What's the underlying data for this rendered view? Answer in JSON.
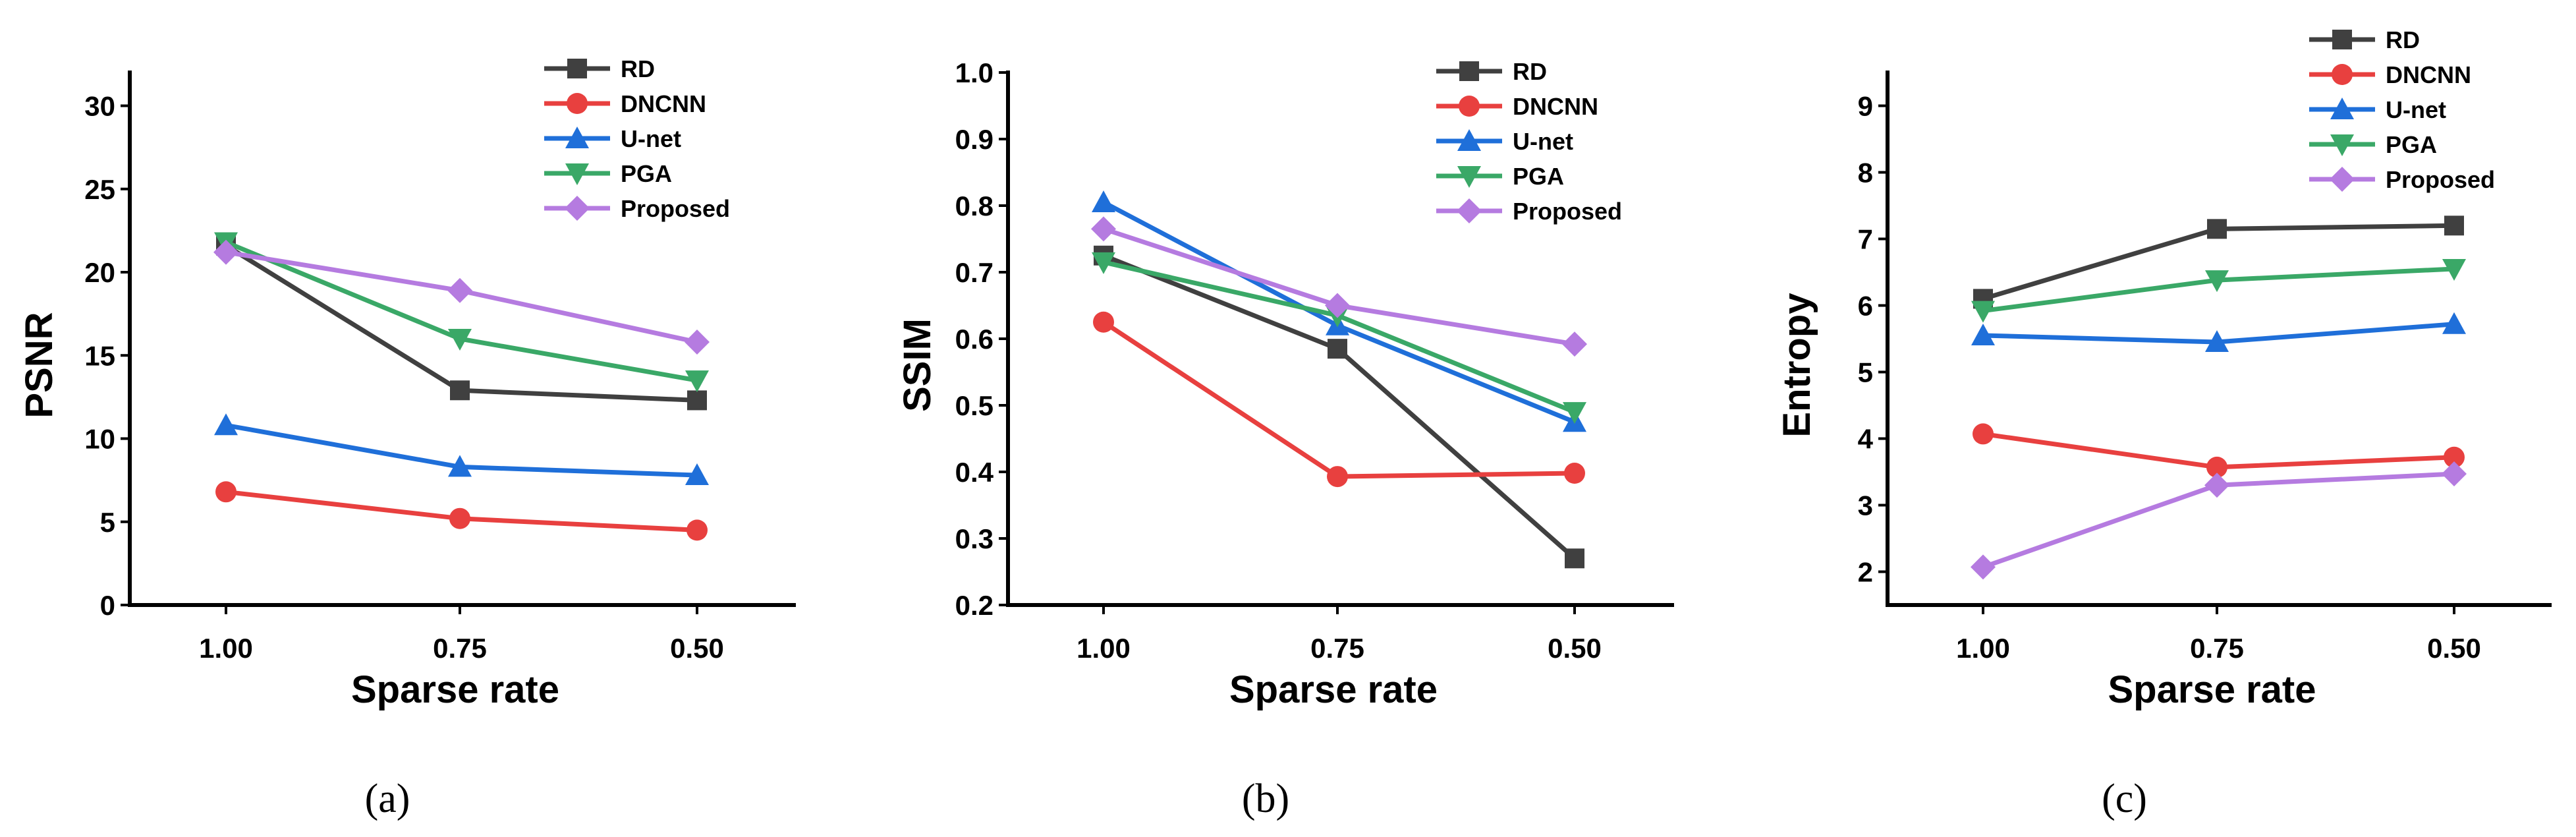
{
  "chart_data": [
    {
      "type": "line",
      "caption": "(a)",
      "xlabel": "Sparse rate",
      "ylabel": "PSNR",
      "categories": [
        "1.00",
        "0.75",
        "0.50"
      ],
      "ylim": [
        0,
        32
      ],
      "yticks": [
        0,
        5,
        10,
        15,
        20,
        25,
        30
      ],
      "ytick_labels": [
        "0",
        "5",
        "10",
        "15",
        "20",
        "25",
        "30"
      ],
      "grid": false,
      "legend": "top-right",
      "series": [
        {
          "name": "RD",
          "values": [
            21.6,
            12.9,
            12.3
          ],
          "color": "#404040",
          "marker": "square"
        },
        {
          "name": "DNCNN",
          "values": [
            6.8,
            5.2,
            4.5
          ],
          "color": "#e8403f",
          "marker": "circle"
        },
        {
          "name": "U-net",
          "values": [
            10.8,
            8.3,
            7.8
          ],
          "color": "#1f6fd9",
          "marker": "triangle-up"
        },
        {
          "name": "PGA",
          "values": [
            21.8,
            16.0,
            13.5
          ],
          "color": "#3aa867",
          "marker": "triangle-down"
        },
        {
          "name": "Proposed",
          "values": [
            21.2,
            18.9,
            15.8
          ],
          "color": "#b57be0",
          "marker": "diamond"
        }
      ]
    },
    {
      "type": "line",
      "caption": "(b)",
      "xlabel": "Sparse rate",
      "ylabel": "SSIM",
      "categories": [
        "1.00",
        "0.75",
        "0.50"
      ],
      "ylim": [
        0.2,
        1.0
      ],
      "yticks": [
        0.2,
        0.3,
        0.4,
        0.5,
        0.6,
        0.7,
        0.8,
        0.9,
        1.0
      ],
      "ytick_labels": [
        "0.2",
        "0.3",
        "0.4",
        "0.5",
        "0.6",
        "0.7",
        "0.8",
        "0.9",
        "1.0"
      ],
      "grid": false,
      "legend": "top-right",
      "series": [
        {
          "name": "RD",
          "values": [
            0.725,
            0.585,
            0.27
          ],
          "color": "#404040",
          "marker": "square"
        },
        {
          "name": "DNCNN",
          "values": [
            0.625,
            0.393,
            0.398
          ],
          "color": "#e8403f",
          "marker": "circle"
        },
        {
          "name": "U-net",
          "values": [
            0.805,
            0.62,
            0.475
          ],
          "color": "#1f6fd9",
          "marker": "triangle-up"
        },
        {
          "name": "PGA",
          "values": [
            0.715,
            0.635,
            0.49
          ],
          "color": "#3aa867",
          "marker": "triangle-down"
        },
        {
          "name": "Proposed",
          "values": [
            0.765,
            0.65,
            0.592
          ],
          "color": "#b57be0",
          "marker": "diamond"
        }
      ]
    },
    {
      "type": "line",
      "caption": "(c)",
      "xlabel": "Sparse rate",
      "ylabel": "Entropy",
      "categories": [
        "1.00",
        "0.75",
        "0.50"
      ],
      "ylim": [
        1.5,
        9.5
      ],
      "yticks": [
        2,
        3,
        4,
        5,
        6,
        7,
        8,
        9
      ],
      "ytick_labels": [
        "2",
        "3",
        "4",
        "5",
        "6",
        "7",
        "8",
        "9"
      ],
      "grid": false,
      "legend": "top-right",
      "series": [
        {
          "name": "RD",
          "values": [
            6.1,
            7.15,
            7.2
          ],
          "color": "#404040",
          "marker": "square"
        },
        {
          "name": "DNCNN",
          "values": [
            4.07,
            3.57,
            3.72
          ],
          "color": "#e8403f",
          "marker": "circle"
        },
        {
          "name": "U-net",
          "values": [
            5.55,
            5.45,
            5.72
          ],
          "color": "#1f6fd9",
          "marker": "triangle-up"
        },
        {
          "name": "PGA",
          "values": [
            5.92,
            6.38,
            6.55
          ],
          "color": "#3aa867",
          "marker": "triangle-down"
        },
        {
          "name": "Proposed",
          "values": [
            2.07,
            3.3,
            3.47
          ],
          "color": "#b57be0",
          "marker": "diamond"
        }
      ]
    }
  ]
}
